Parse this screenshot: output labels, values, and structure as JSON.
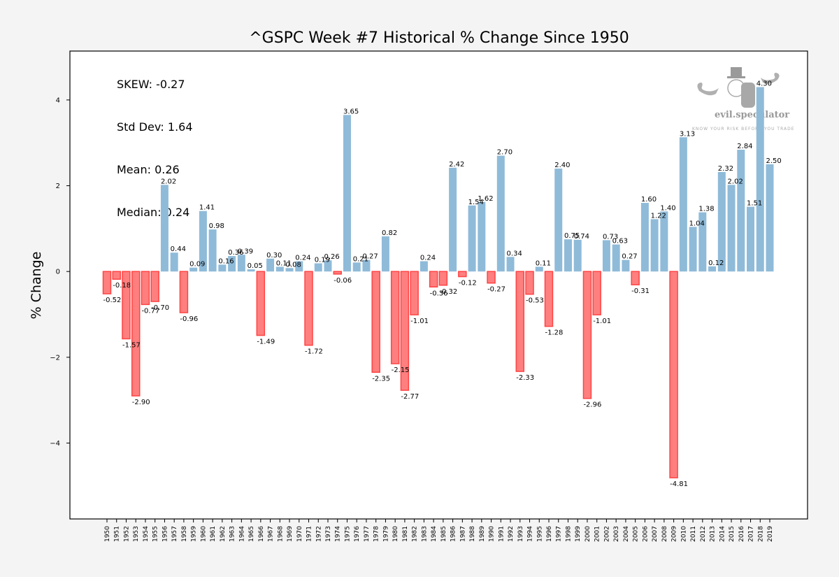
{
  "chart_data": {
    "type": "bar",
    "title": "^GSPC Week #7 Historical % Change Since 1950",
    "xlabel": "",
    "ylabel": "% Change",
    "ylim": [
      -5.77,
      5.14
    ],
    "yticks": [
      -4,
      -2,
      0,
      2,
      4
    ],
    "ytick_labels": [
      "−4",
      "−2",
      "0",
      "2",
      "4"
    ],
    "grid": false,
    "legend": null,
    "stats": [
      {
        "label": "SKEW: -0.27"
      },
      {
        "label": "Std Dev: 1.64"
      },
      {
        "label": "Mean: 0.26"
      },
      {
        "label": "Median: 0.24"
      }
    ],
    "colors": {
      "positive": "#8fbbd9",
      "negative_fill": "#ff7f7f",
      "negative_edge": "#ff4444"
    },
    "categories": [
      "1950",
      "1951",
      "1952",
      "1953",
      "1954",
      "1955",
      "1956",
      "1957",
      "1958",
      "1959",
      "1960",
      "1961",
      "1962",
      "1963",
      "1964",
      "1965",
      "1966",
      "1967",
      "1968",
      "1969",
      "1970",
      "1971",
      "1972",
      "1973",
      "1974",
      "1975",
      "1976",
      "1977",
      "1978",
      "1979",
      "1980",
      "1981",
      "1982",
      "1983",
      "1984",
      "1985",
      "1986",
      "1987",
      "1988",
      "1989",
      "1990",
      "1991",
      "1992",
      "1993",
      "1994",
      "1995",
      "1996",
      "1997",
      "1998",
      "1999",
      "2000",
      "2001",
      "2002",
      "2003",
      "2004",
      "2005",
      "2006",
      "2007",
      "2008",
      "2009",
      "2010",
      "2011",
      "2012",
      "2013",
      "2014",
      "2015",
      "2016",
      "2017",
      "2018",
      "2019"
    ],
    "values": [
      -0.52,
      -0.18,
      -1.57,
      -2.9,
      -0.77,
      -0.7,
      2.02,
      0.44,
      -0.96,
      0.09,
      1.41,
      0.98,
      0.16,
      0.36,
      0.39,
      0.05,
      -1.49,
      0.3,
      0.11,
      0.08,
      0.24,
      -1.72,
      0.19,
      0.26,
      -0.06,
      3.65,
      0.21,
      0.27,
      -2.35,
      0.82,
      -2.15,
      -2.77,
      -1.01,
      0.24,
      -0.36,
      -0.32,
      2.42,
      -0.12,
      1.54,
      1.62,
      -0.27,
      2.7,
      0.34,
      -2.33,
      -0.53,
      0.11,
      -1.28,
      2.4,
      0.75,
      0.74,
      -2.96,
      -1.01,
      0.73,
      0.63,
      0.27,
      -0.31,
      1.6,
      1.22,
      1.4,
      -4.81,
      3.13,
      1.04,
      1.38,
      0.12,
      2.32,
      2.02,
      2.84,
      1.51,
      4.3,
      2.5
    ]
  },
  "watermark": {
    "brand": "evil.speculator",
    "tagline": "KNOW YOUR RISK BEFORE YOU TRADE"
  }
}
